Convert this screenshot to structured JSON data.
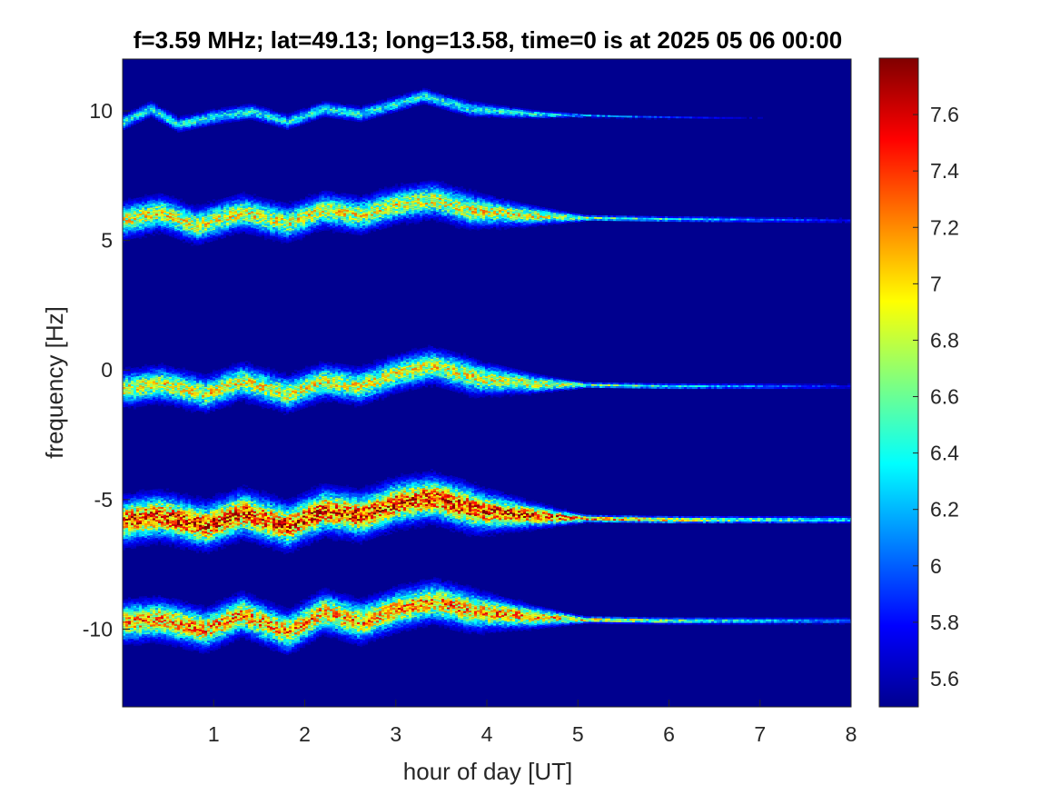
{
  "chart_data": {
    "type": "heatmap",
    "title": "f=3.59 MHz;  lat=49.13; long=13.58, time=0 is at 2025 05 06 00:00",
    "xlabel": "hour of day [UT]",
    "ylabel": "frequency [Hz]",
    "xlim": [
      0,
      8
    ],
    "ylim": [
      -13,
      12
    ],
    "xticks": [
      1,
      2,
      3,
      4,
      5,
      6,
      7,
      8
    ],
    "yticks": [
      -10,
      -5,
      0,
      5,
      10
    ],
    "colormap": "jet",
    "clim": [
      5.5,
      7.8
    ],
    "colorbar_ticks": [
      5.6,
      5.8,
      6,
      6.2,
      6.4,
      6.6,
      6.8,
      7,
      7.2,
      7.4,
      7.6
    ],
    "background_value": 5.5,
    "background_color": "#00008F",
    "grid": false,
    "traces": [
      {
        "label_offset": 10,
        "center_points": [
          [
            0,
            9.6
          ],
          [
            0.3,
            10.1
          ],
          [
            0.6,
            9.5
          ],
          [
            1.0,
            9.8
          ],
          [
            1.4,
            10.0
          ],
          [
            1.8,
            9.6
          ],
          [
            2.2,
            10.1
          ],
          [
            2.6,
            9.9
          ],
          [
            3.0,
            10.3
          ],
          [
            3.3,
            10.6
          ],
          [
            3.8,
            10.1
          ],
          [
            4.5,
            9.9
          ],
          [
            5.5,
            9.8
          ],
          [
            6.5,
            9.75
          ],
          [
            8.0,
            9.75
          ]
        ],
        "spread": 0.15,
        "peak": 6.5
      },
      {
        "label_offset": 6,
        "center_points": [
          [
            0,
            5.8
          ],
          [
            0.4,
            6.1
          ],
          [
            0.8,
            5.6
          ],
          [
            1.3,
            6.1
          ],
          [
            1.8,
            5.7
          ],
          [
            2.2,
            6.2
          ],
          [
            2.6,
            6.0
          ],
          [
            3.0,
            6.4
          ],
          [
            3.4,
            6.6
          ],
          [
            3.8,
            6.2
          ],
          [
            4.4,
            6.0
          ],
          [
            5.0,
            5.9
          ],
          [
            6.0,
            5.85
          ],
          [
            8.0,
            5.8
          ]
        ],
        "spread": 0.35,
        "peak": 7.0
      },
      {
        "label_offset": -1,
        "center_points": [
          [
            0,
            -0.7
          ],
          [
            0.4,
            -0.5
          ],
          [
            0.9,
            -0.9
          ],
          [
            1.3,
            -0.4
          ],
          [
            1.8,
            -0.9
          ],
          [
            2.2,
            -0.4
          ],
          [
            2.6,
            -0.6
          ],
          [
            3.0,
            -0.1
          ],
          [
            3.4,
            0.2
          ],
          [
            3.9,
            -0.3
          ],
          [
            4.5,
            -0.5
          ],
          [
            5.0,
            -0.55
          ],
          [
            6.0,
            -0.6
          ],
          [
            8.0,
            -0.6
          ]
        ],
        "spread": 0.35,
        "peak": 7.0
      },
      {
        "label_offset": -6,
        "center_points": [
          [
            0,
            -5.8
          ],
          [
            0.4,
            -5.6
          ],
          [
            0.9,
            -6.0
          ],
          [
            1.3,
            -5.5
          ],
          [
            1.8,
            -6.0
          ],
          [
            2.2,
            -5.4
          ],
          [
            2.6,
            -5.6
          ],
          [
            3.0,
            -5.1
          ],
          [
            3.4,
            -4.9
          ],
          [
            3.9,
            -5.4
          ],
          [
            4.5,
            -5.6
          ],
          [
            5.0,
            -5.7
          ],
          [
            6.0,
            -5.75
          ],
          [
            8.0,
            -5.75
          ]
        ],
        "spread": 0.45,
        "peak": 7.6
      },
      {
        "label_offset": -10,
        "center_points": [
          [
            0,
            -9.7
          ],
          [
            0.4,
            -9.6
          ],
          [
            0.9,
            -10.0
          ],
          [
            1.3,
            -9.4
          ],
          [
            1.8,
            -10.1
          ],
          [
            2.2,
            -9.3
          ],
          [
            2.6,
            -9.7
          ],
          [
            3.0,
            -9.2
          ],
          [
            3.4,
            -8.9
          ],
          [
            3.9,
            -9.3
          ],
          [
            4.5,
            -9.5
          ],
          [
            5.0,
            -9.6
          ],
          [
            6.0,
            -9.65
          ],
          [
            8.0,
            -9.65
          ]
        ],
        "spread": 0.4,
        "peak": 7.3
      }
    ]
  }
}
